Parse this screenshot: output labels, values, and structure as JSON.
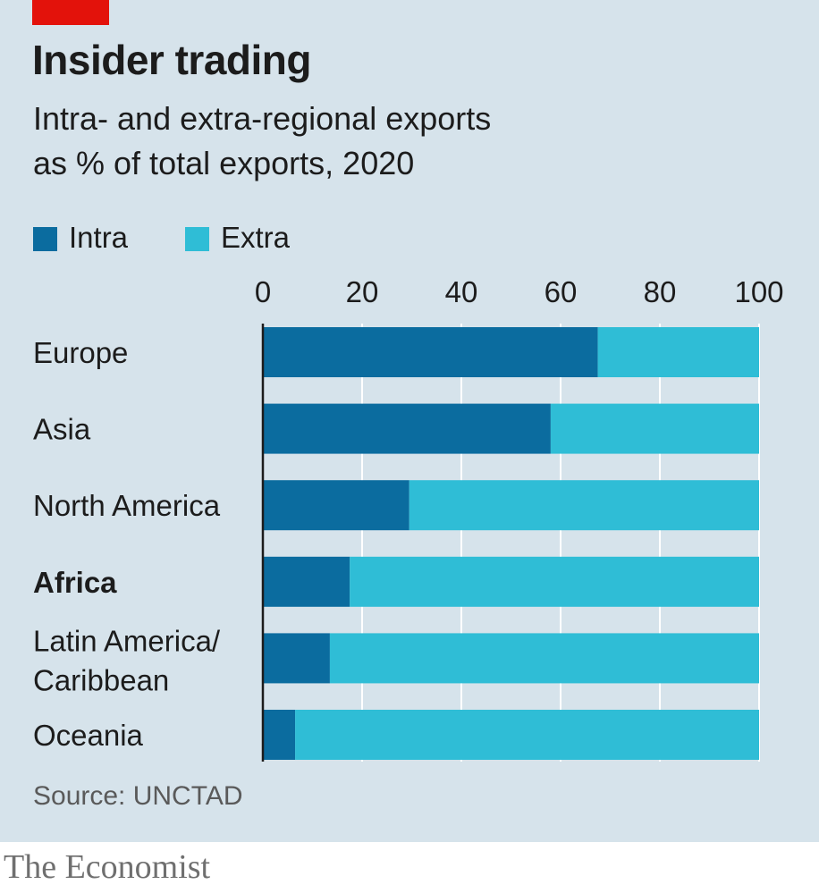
{
  "header": {
    "title": "Insider trading",
    "subtitle_line1": "Intra- and extra-regional exports",
    "subtitle_line2": "as % of total exports, 2020"
  },
  "legend": {
    "intra_label": "Intra",
    "extra_label": "Extra"
  },
  "source": "Source: UNCTAD",
  "brand": "The Economist",
  "colors": {
    "intra": "#0b6c9f",
    "extra": "#2fbdd6",
    "accent_red": "#e3120b",
    "background": "#d6e3eb"
  },
  "chart_data": {
    "type": "bar",
    "orientation": "horizontal",
    "stacked": true,
    "categories": [
      "Europe",
      "Asia",
      "North America",
      "Africa",
      "Latin America/ Caribbean",
      "Oceania"
    ],
    "highlighted_category": "Africa",
    "series": [
      {
        "name": "Intra",
        "values": [
          67.5,
          58,
          29.5,
          17.5,
          13.5,
          6.5
        ]
      },
      {
        "name": "Extra",
        "values": [
          32.5,
          42,
          70.5,
          82.5,
          86.5,
          93.5
        ]
      }
    ],
    "xticks": [
      "0",
      "20",
      "40",
      "60",
      "80",
      "100"
    ],
    "xlim": [
      0,
      100
    ],
    "xaxis_position": "top",
    "grid": true,
    "legend_position": "top-left"
  }
}
